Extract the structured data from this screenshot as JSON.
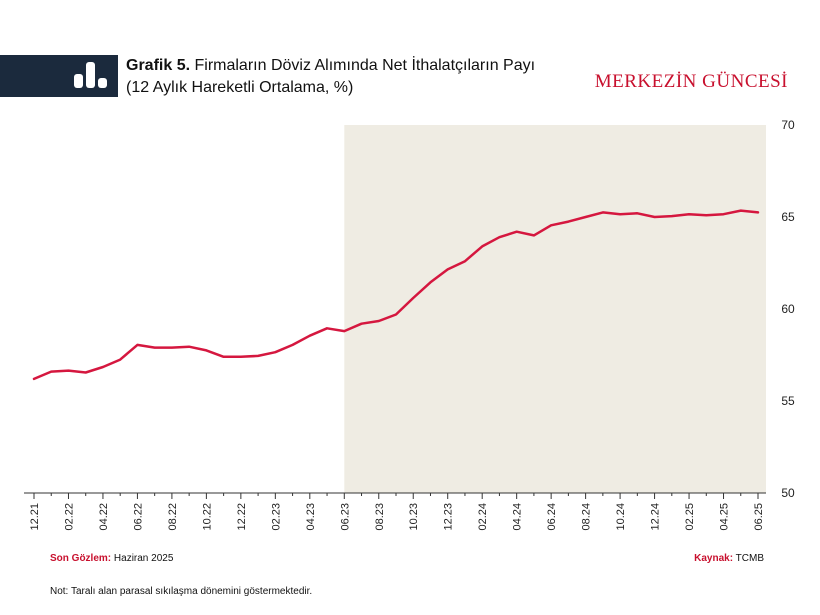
{
  "header": {
    "title_bold": "Grafik 5.",
    "title_rest": "Firmaların Döviz Alımında Net İthalatçıların Payı",
    "subtitle": "(12 Aylık Hareketli Ortalama, %)",
    "brand": "MERKEZİN GÜNCESİ"
  },
  "footer": {
    "last_obs_label": "Son Gözlem:",
    "last_obs_value": "Haziran 2025",
    "source_label": "Kaynak:",
    "source_value": "TCMB",
    "note": "Not: Taralı alan parasal sıkılaşma dönemini göstermektedir."
  },
  "colors": {
    "line": "#d5173f",
    "shade": "#efece3",
    "axis": "#333333",
    "brand": "#c8102e",
    "header_band": "#1b2a3d"
  },
  "chart_data": {
    "type": "line",
    "ylim": [
      50,
      70
    ],
    "yticks": [
      50,
      55,
      60,
      65,
      70
    ],
    "y_axis_position": "right",
    "grid": false,
    "x_tick_labels": [
      "12.21",
      "02.22",
      "04.22",
      "06.22",
      "08.22",
      "10.22",
      "12.22",
      "02.23",
      "04.23",
      "06.23",
      "08.23",
      "10.23",
      "12.23",
      "02.24",
      "04.24",
      "06.24",
      "08.24",
      "10.24",
      "12.24",
      "02.25",
      "04.25",
      "06.25"
    ],
    "shaded_region": {
      "from": "06.23",
      "to": "06.25"
    },
    "series": [
      {
        "x": [
          "12.21",
          "01.22",
          "02.22",
          "03.22",
          "04.22",
          "05.22",
          "06.22",
          "07.22",
          "08.22",
          "09.22",
          "10.22",
          "11.22",
          "12.22",
          "01.23",
          "02.23",
          "03.23",
          "04.23",
          "05.23",
          "06.23",
          "07.23",
          "08.23",
          "09.23",
          "10.23",
          "11.23",
          "12.23",
          "01.24",
          "02.24",
          "03.24",
          "04.24",
          "05.24",
          "06.24",
          "07.24",
          "08.24",
          "09.24",
          "10.24",
          "11.24",
          "12.24",
          "01.25",
          "02.25",
          "03.25",
          "04.25",
          "05.25",
          "06.25"
        ],
        "values": [
          56.2,
          56.6,
          56.65,
          56.55,
          56.85,
          57.25,
          58.05,
          57.9,
          57.9,
          57.95,
          57.75,
          57.4,
          57.4,
          57.45,
          57.65,
          58.05,
          58.55,
          58.95,
          58.8,
          59.2,
          59.35,
          59.7,
          60.6,
          61.45,
          62.15,
          62.6,
          63.4,
          63.9,
          64.2,
          64.0,
          64.55,
          64.75,
          65.0,
          65.25,
          65.15,
          65.2,
          65.0,
          65.05,
          65.15,
          65.1,
          65.15,
          65.35,
          65.25
        ]
      }
    ]
  }
}
